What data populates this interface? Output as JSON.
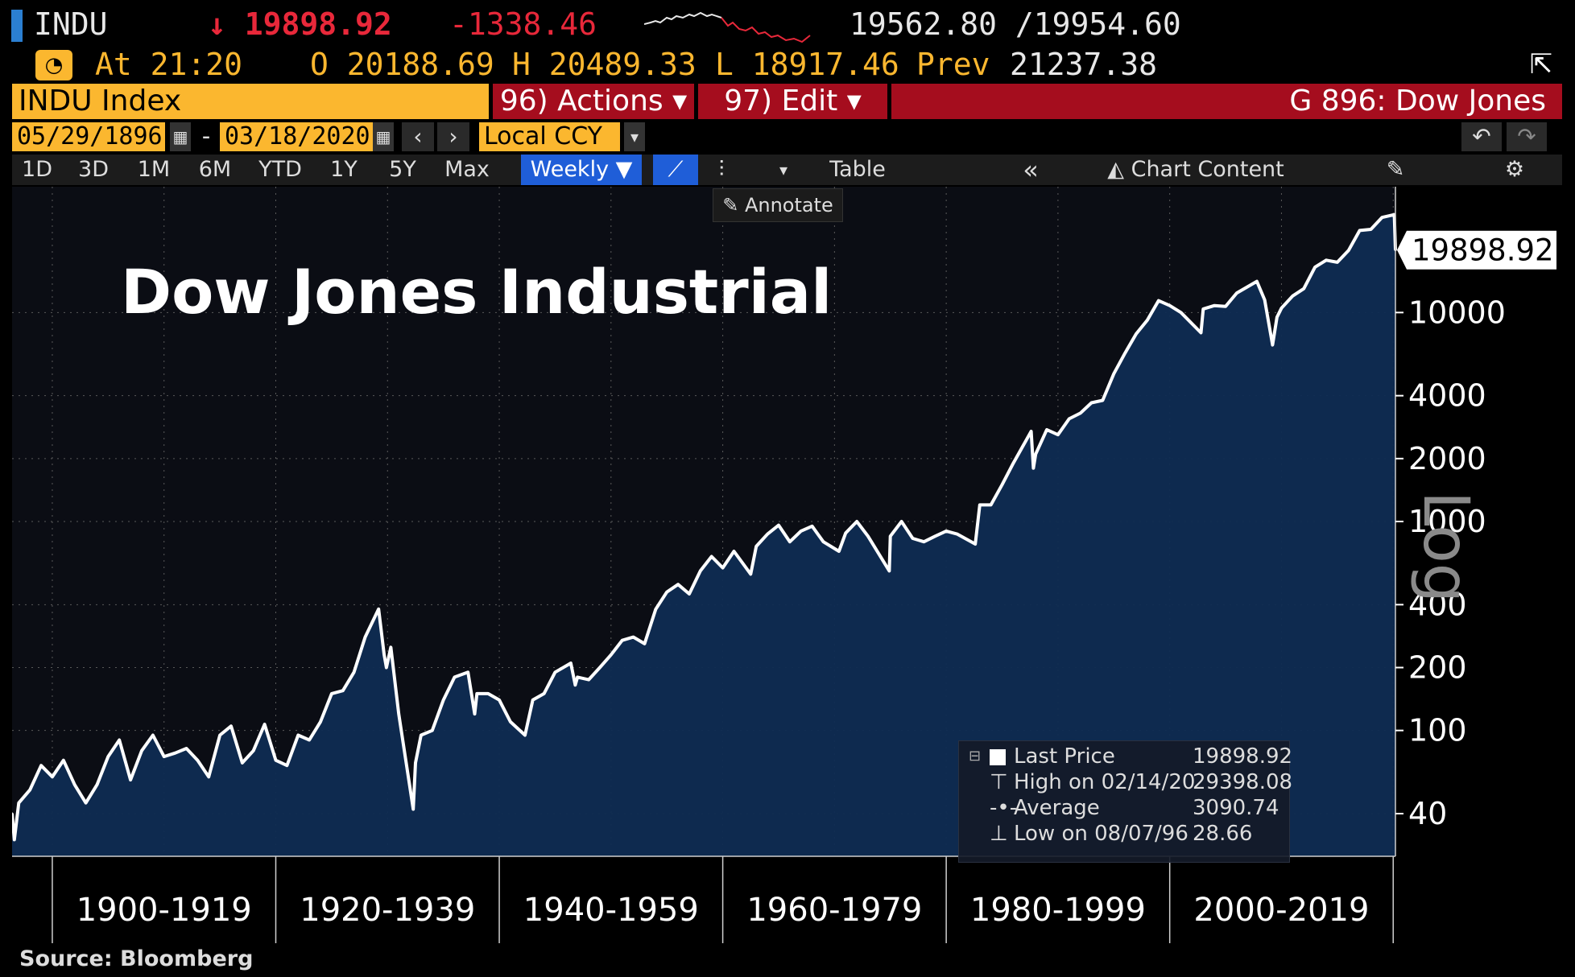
{
  "ticker": {
    "symbol": "INDU",
    "last_price": "↓ 19898.92",
    "change": "-1338.46",
    "bid_ask": "19562.80 /19954.60",
    "time_label": "At 21:20",
    "open": "O 20188.69",
    "high": "H 20489.33",
    "low": "L 18917.46",
    "prev_label": "Prev",
    "prev_value": "21237.38"
  },
  "title_bar": {
    "index_name": "INDU Index",
    "actions_label": "96) Actions ▾",
    "edit_label": "97) Edit ▾",
    "chart_id": "G 896: Dow Jones"
  },
  "date_range": {
    "start": "05/29/1896",
    "separator": "-",
    "end": "03/18/2020",
    "currency": "Local CCY"
  },
  "toolbar": {
    "periods": [
      "1D",
      "3D",
      "1M",
      "6M",
      "YTD",
      "1Y",
      "5Y",
      "Max"
    ],
    "frequency": "Weekly ▼",
    "table_label": "Table",
    "collapse_label": "«",
    "chart_content_label": "Chart Content",
    "annotate_label": "Annotate"
  },
  "colors": {
    "accent_orange": "#fbb72f",
    "header_red": "#a50d1e",
    "active_blue": "#1f5ed8",
    "price_red": "#e8283a",
    "area_fill": "#0f2c52",
    "line": "#ffffff"
  },
  "icons": [
    "calendar-icon",
    "chevron-left-icon",
    "chevron-right-icon",
    "undo-icon",
    "redo-icon",
    "line-chart-icon",
    "bar-chart-icon",
    "pencil-icon",
    "settings-icon",
    "export-icon",
    "gauge-icon"
  ],
  "chart_data": {
    "type": "area",
    "title": "Dow Jones Industrial",
    "y_scale": "log",
    "y_scale_label": "Log",
    "yticks": [
      40,
      100,
      200,
      400,
      1000,
      2000,
      4000,
      10000
    ],
    "ylim": [
      25,
      40000
    ],
    "xlim": [
      1896.4,
      2020.2
    ],
    "x_group_labels": [
      "1900-1919",
      "1920-1939",
      "1940-1959",
      "1960-1979",
      "1980-1999",
      "2000-2019"
    ],
    "x_group_bounds": [
      1900,
      1920,
      1940,
      1960,
      1980,
      2000,
      2020
    ],
    "last_value_label": "19898.92",
    "grid": true,
    "legend_position": "bottom-right",
    "legend": [
      {
        "label": "Last Price",
        "value": "19898.92"
      },
      {
        "label": "High on 02/14/20",
        "value": "29398.08"
      },
      {
        "label": "Average",
        "value": "3090.74"
      },
      {
        "label": "Low on 08/07/96",
        "value": "28.66"
      }
    ],
    "source": "Source:  Bloomberg",
    "x": [
      1896.4,
      1896.6,
      1897,
      1898,
      1899,
      1900,
      1901,
      1902,
      1903,
      1904,
      1905,
      1906,
      1907,
      1908,
      1909,
      1910,
      1911,
      1912,
      1913,
      1914,
      1915,
      1916,
      1917,
      1918,
      1919,
      1920,
      1921,
      1922,
      1923,
      1924,
      1925,
      1926,
      1927,
      1928,
      1929.2,
      1929.7,
      1929.9,
      1930.3,
      1931,
      1932.3,
      1932.5,
      1933,
      1934,
      1935,
      1936,
      1937.2,
      1937.8,
      1938,
      1939,
      1940,
      1941,
      1942.3,
      1943,
      1944,
      1945,
      1946.4,
      1946.8,
      1947,
      1948,
      1949,
      1950,
      1951,
      1952,
      1953,
      1954,
      1955,
      1956,
      1957,
      1958,
      1959,
      1960,
      1961,
      1962.5,
      1963,
      1964,
      1965,
      1966,
      1967,
      1968,
      1969,
      1970.4,
      1971,
      1972,
      1973,
      1974.9,
      1975,
      1976,
      1977,
      1978,
      1979,
      1980,
      1981,
      1982.6,
      1983,
      1984,
      1985,
      1986,
      1987.6,
      1987.8,
      1988,
      1989,
      1990,
      1991,
      1992,
      1993,
      1994,
      1995,
      1996,
      1997,
      1998,
      1999,
      2000,
      2001,
      2002.8,
      2003,
      2004,
      2005,
      2006,
      2007.8,
      2008.5,
      2009.2,
      2009.6,
      2010,
      2011,
      2012,
      2013,
      2014,
      2015,
      2016,
      2017,
      2018,
      2019,
      2020.1,
      2020.2
    ],
    "values": [
      40,
      30,
      45,
      52,
      68,
      60,
      72,
      55,
      45,
      55,
      75,
      90,
      58,
      80,
      95,
      75,
      78,
      82,
      72,
      60,
      95,
      105,
      70,
      80,
      107,
      72,
      68,
      95,
      90,
      110,
      150,
      155,
      190,
      280,
      381,
      230,
      200,
      250,
      120,
      42,
      70,
      95,
      100,
      140,
      180,
      190,
      120,
      150,
      150,
      140,
      110,
      95,
      140,
      150,
      190,
      210,
      165,
      180,
      175,
      200,
      230,
      270,
      280,
      260,
      380,
      460,
      500,
      450,
      580,
      680,
      600,
      720,
      560,
      760,
      870,
      960,
      800,
      900,
      950,
      800,
      720,
      880,
      1000,
      850,
      580,
      850,
      1000,
      830,
      800,
      850,
      900,
      870,
      780,
      1200,
      1200,
      1500,
      1900,
      2700,
      1800,
      2100,
      2750,
      2600,
      3100,
      3300,
      3700,
      3800,
      5100,
      6400,
      7900,
      9200,
      11400,
      10800,
      10000,
      8000,
      10400,
      10800,
      10700,
      12400,
      14100,
      11500,
      7000,
      9500,
      10500,
      12000,
      13000,
      16500,
      17800,
      17400,
      19800,
      24700,
      25000,
      28500,
      29398,
      19898.92
    ]
  }
}
